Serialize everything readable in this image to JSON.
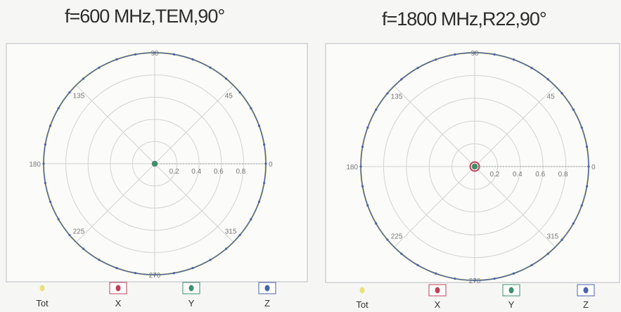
{
  "chart_data": [
    {
      "type": "polar",
      "title": "f=600 MHz,TEM,90°",
      "angle_labels": [
        "90",
        "45",
        "0",
        "315",
        "270",
        "225",
        "180",
        "135"
      ],
      "radial_ticks": [
        "0.2",
        "0.4",
        "0.6",
        "0.8"
      ],
      "rlim": [
        0,
        1
      ],
      "grid": true,
      "legend_position": "bottom",
      "series": [
        {
          "name": "Tot",
          "color": "#e7e27a",
          "value": 1.0,
          "shape": "circle"
        },
        {
          "name": "X",
          "color": "#c0405a",
          "value": 0.02,
          "shape": "point"
        },
        {
          "name": "Y",
          "color": "#3f8f6a",
          "value": 0.02,
          "shape": "point"
        },
        {
          "name": "Z",
          "color": "#4a63ad",
          "value": 1.0,
          "shape": "circle"
        }
      ]
    },
    {
      "type": "polar",
      "title": "f=1800 MHz,R22,90°",
      "angle_labels": [
        "90",
        "45",
        "0",
        "315",
        "270",
        "225",
        "180",
        "135"
      ],
      "radial_ticks": [
        "0.2",
        "0.4",
        "0.6",
        "0.8"
      ],
      "rlim": [
        0,
        1
      ],
      "grid": true,
      "legend_position": "bottom",
      "series": [
        {
          "name": "Tot",
          "color": "#e7e27a",
          "value": 1.0,
          "shape": "circle"
        },
        {
          "name": "X",
          "color": "#c0405a",
          "value": 0.04,
          "shape": "point"
        },
        {
          "name": "Y",
          "color": "#3f8f6a",
          "value": 0.02,
          "shape": "point"
        },
        {
          "name": "Z",
          "color": "#4a63ad",
          "value": 1.0,
          "shape": "circle"
        }
      ]
    }
  ]
}
